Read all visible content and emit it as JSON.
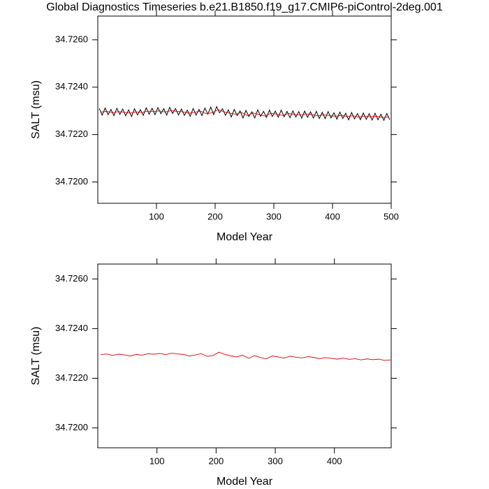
{
  "chart_data": [
    {
      "type": "line",
      "title": "Global Diagnostics Timeseries b.e21.B1850.f19_g17.CMIP6-piControl-2deg.001",
      "xlabel": "Model Year",
      "ylabel": "SALT (msu)",
      "xlim": [
        0,
        500
      ],
      "ylim": [
        34.7191,
        34.727
      ],
      "xticks": [
        100,
        200,
        300,
        400,
        500
      ],
      "yticks": [
        {
          "value": 34.72,
          "label": "34.7200"
        },
        {
          "value": 34.722,
          "label": "34.7220"
        },
        {
          "value": 34.724,
          "label": "34.7240"
        },
        {
          "value": 34.726,
          "label": "34.7260"
        }
      ],
      "series": [
        {
          "color": "#000000",
          "x": [
            2.5,
            7.5,
            12.5,
            17.5,
            22.5,
            27.5,
            32.5,
            37.5,
            42.5,
            47.5,
            52.5,
            57.5,
            62.5,
            67.5,
            72.5,
            77.5,
            82.5,
            87.5,
            92.5,
            97.5,
            102.5,
            107.5,
            112.5,
            117.5,
            122.5,
            127.5,
            132.5,
            137.5,
            142.5,
            147.5,
            152.5,
            157.5,
            162.5,
            167.5,
            172.5,
            177.5,
            182.5,
            187.5,
            192.5,
            197.5,
            202.5,
            207.5,
            212.5,
            217.5,
            222.5,
            227.5,
            232.5,
            237.5,
            242.5,
            247.5,
            252.5,
            257.5,
            262.5,
            267.5,
            272.5,
            277.5,
            282.5,
            287.5,
            292.5,
            297.5,
            302.5,
            307.5,
            312.5,
            317.5,
            322.5,
            327.5,
            332.5,
            337.5,
            342.5,
            347.5,
            352.5,
            357.5,
            362.5,
            367.5,
            372.5,
            377.5,
            382.5,
            387.5,
            392.5,
            397.5,
            402.5,
            407.5,
            412.5,
            417.5,
            422.5,
            427.5,
            432.5,
            437.5,
            442.5,
            447.5,
            452.5,
            457.5,
            462.5,
            467.5,
            472.5,
            477.5,
            482.5,
            487.5,
            492.5,
            497.5
          ],
          "values": [
            34.7231,
            34.72282,
            34.72312,
            34.72284,
            34.72306,
            34.7228,
            34.72311,
            34.72285,
            34.72308,
            34.72279,
            34.72304,
            34.72276,
            34.72309,
            34.72283,
            34.72305,
            34.72281,
            34.72313,
            34.72286,
            34.72311,
            34.72284,
            34.72314,
            34.72288,
            34.72309,
            34.72282,
            34.72315,
            34.72289,
            34.7231,
            34.72283,
            34.72308,
            34.72281,
            34.72303,
            34.72277,
            34.7231,
            34.72282,
            34.72306,
            34.7228,
            34.72312,
            34.72286,
            34.72316,
            34.72284,
            34.72318,
            34.72292,
            34.72309,
            34.72281,
            34.72304,
            34.72274,
            34.72306,
            34.7228,
            34.723,
            34.7227,
            34.72302,
            34.72276,
            34.72296,
            34.7227,
            34.72304,
            34.72277,
            34.72298,
            34.72272,
            34.72303,
            34.72276,
            34.72299,
            34.72273,
            34.72303,
            34.72275,
            34.72298,
            34.72271,
            34.723,
            34.72274,
            34.72297,
            34.72269,
            34.72299,
            34.72273,
            34.72296,
            34.7227,
            34.72298,
            34.72268,
            34.72294,
            34.72267,
            34.72297,
            34.7227,
            34.72292,
            34.72265,
            34.72295,
            34.72268,
            34.7229,
            34.72262,
            34.72293,
            34.72266,
            34.72289,
            34.72263,
            34.72291,
            34.72264,
            34.72288,
            34.72261,
            34.7229,
            34.72262,
            34.72286,
            34.7226,
            34.72289,
            34.72263
          ]
        },
        {
          "color": "#e00000",
          "x": [
            5,
            15,
            25,
            35,
            45,
            55,
            65,
            75,
            85,
            95,
            105,
            115,
            125,
            135,
            145,
            155,
            165,
            175,
            185,
            195,
            205,
            215,
            225,
            235,
            245,
            255,
            265,
            275,
            285,
            295,
            305,
            315,
            325,
            335,
            345,
            355,
            365,
            375,
            385,
            395,
            405,
            415,
            425,
            435,
            445,
            455,
            465,
            475,
            485,
            495
          ],
          "values": [
            34.72295,
            34.72298,
            34.72292,
            34.72297,
            34.72294,
            34.7229,
            34.72296,
            34.72293,
            34.72299,
            34.72297,
            34.723,
            34.72295,
            34.72301,
            34.72298,
            34.72296,
            34.7229,
            34.72294,
            34.72299,
            34.72288,
            34.72292,
            34.72305,
            34.72296,
            34.7229,
            34.72286,
            34.72293,
            34.7228,
            34.72291,
            34.72284,
            34.72278,
            34.7229,
            34.72286,
            34.72281,
            34.72289,
            34.72285,
            34.72282,
            34.72287,
            34.72284,
            34.72279,
            34.72283,
            34.7228,
            34.72277,
            34.72281,
            34.72276,
            34.72279,
            34.72274,
            34.72278,
            34.72275,
            34.72277,
            34.72272,
            34.72274
          ]
        }
      ]
    },
    {
      "type": "line",
      "xlabel": "Model Year",
      "ylabel": "SALT (msu)",
      "xlim": [
        0,
        496
      ],
      "ylim": [
        34.7192,
        34.7266
      ],
      "xticks": [
        100,
        200,
        300,
        400
      ],
      "yticks": [
        {
          "value": 34.72,
          "label": "34.7200"
        },
        {
          "value": 34.722,
          "label": "34.7220"
        },
        {
          "value": 34.724,
          "label": "34.7240"
        },
        {
          "value": 34.726,
          "label": "34.7260"
        }
      ],
      "series": [
        {
          "color": "#e00000",
          "x": [
            5,
            15,
            25,
            35,
            45,
            55,
            65,
            75,
            85,
            95,
            105,
            115,
            125,
            135,
            145,
            155,
            165,
            175,
            185,
            195,
            205,
            215,
            225,
            235,
            245,
            255,
            265,
            275,
            285,
            295,
            305,
            315,
            325,
            335,
            345,
            355,
            365,
            375,
            385,
            395,
            405,
            415,
            425,
            435,
            445,
            455,
            465,
            475,
            485,
            495
          ],
          "values": [
            34.72295,
            34.72298,
            34.72292,
            34.72297,
            34.72294,
            34.7229,
            34.72296,
            34.72293,
            34.72299,
            34.72297,
            34.723,
            34.72295,
            34.72301,
            34.72298,
            34.72296,
            34.7229,
            34.72294,
            34.72299,
            34.72288,
            34.72292,
            34.72305,
            34.72296,
            34.7229,
            34.72286,
            34.72293,
            34.7228,
            34.72291,
            34.72284,
            34.72278,
            34.7229,
            34.72286,
            34.72281,
            34.72289,
            34.72285,
            34.72282,
            34.72287,
            34.72284,
            34.72279,
            34.72283,
            34.7228,
            34.72277,
            34.72281,
            34.72276,
            34.72279,
            34.72274,
            34.72278,
            34.72275,
            34.72277,
            34.72272,
            34.72274
          ]
        }
      ]
    }
  ]
}
